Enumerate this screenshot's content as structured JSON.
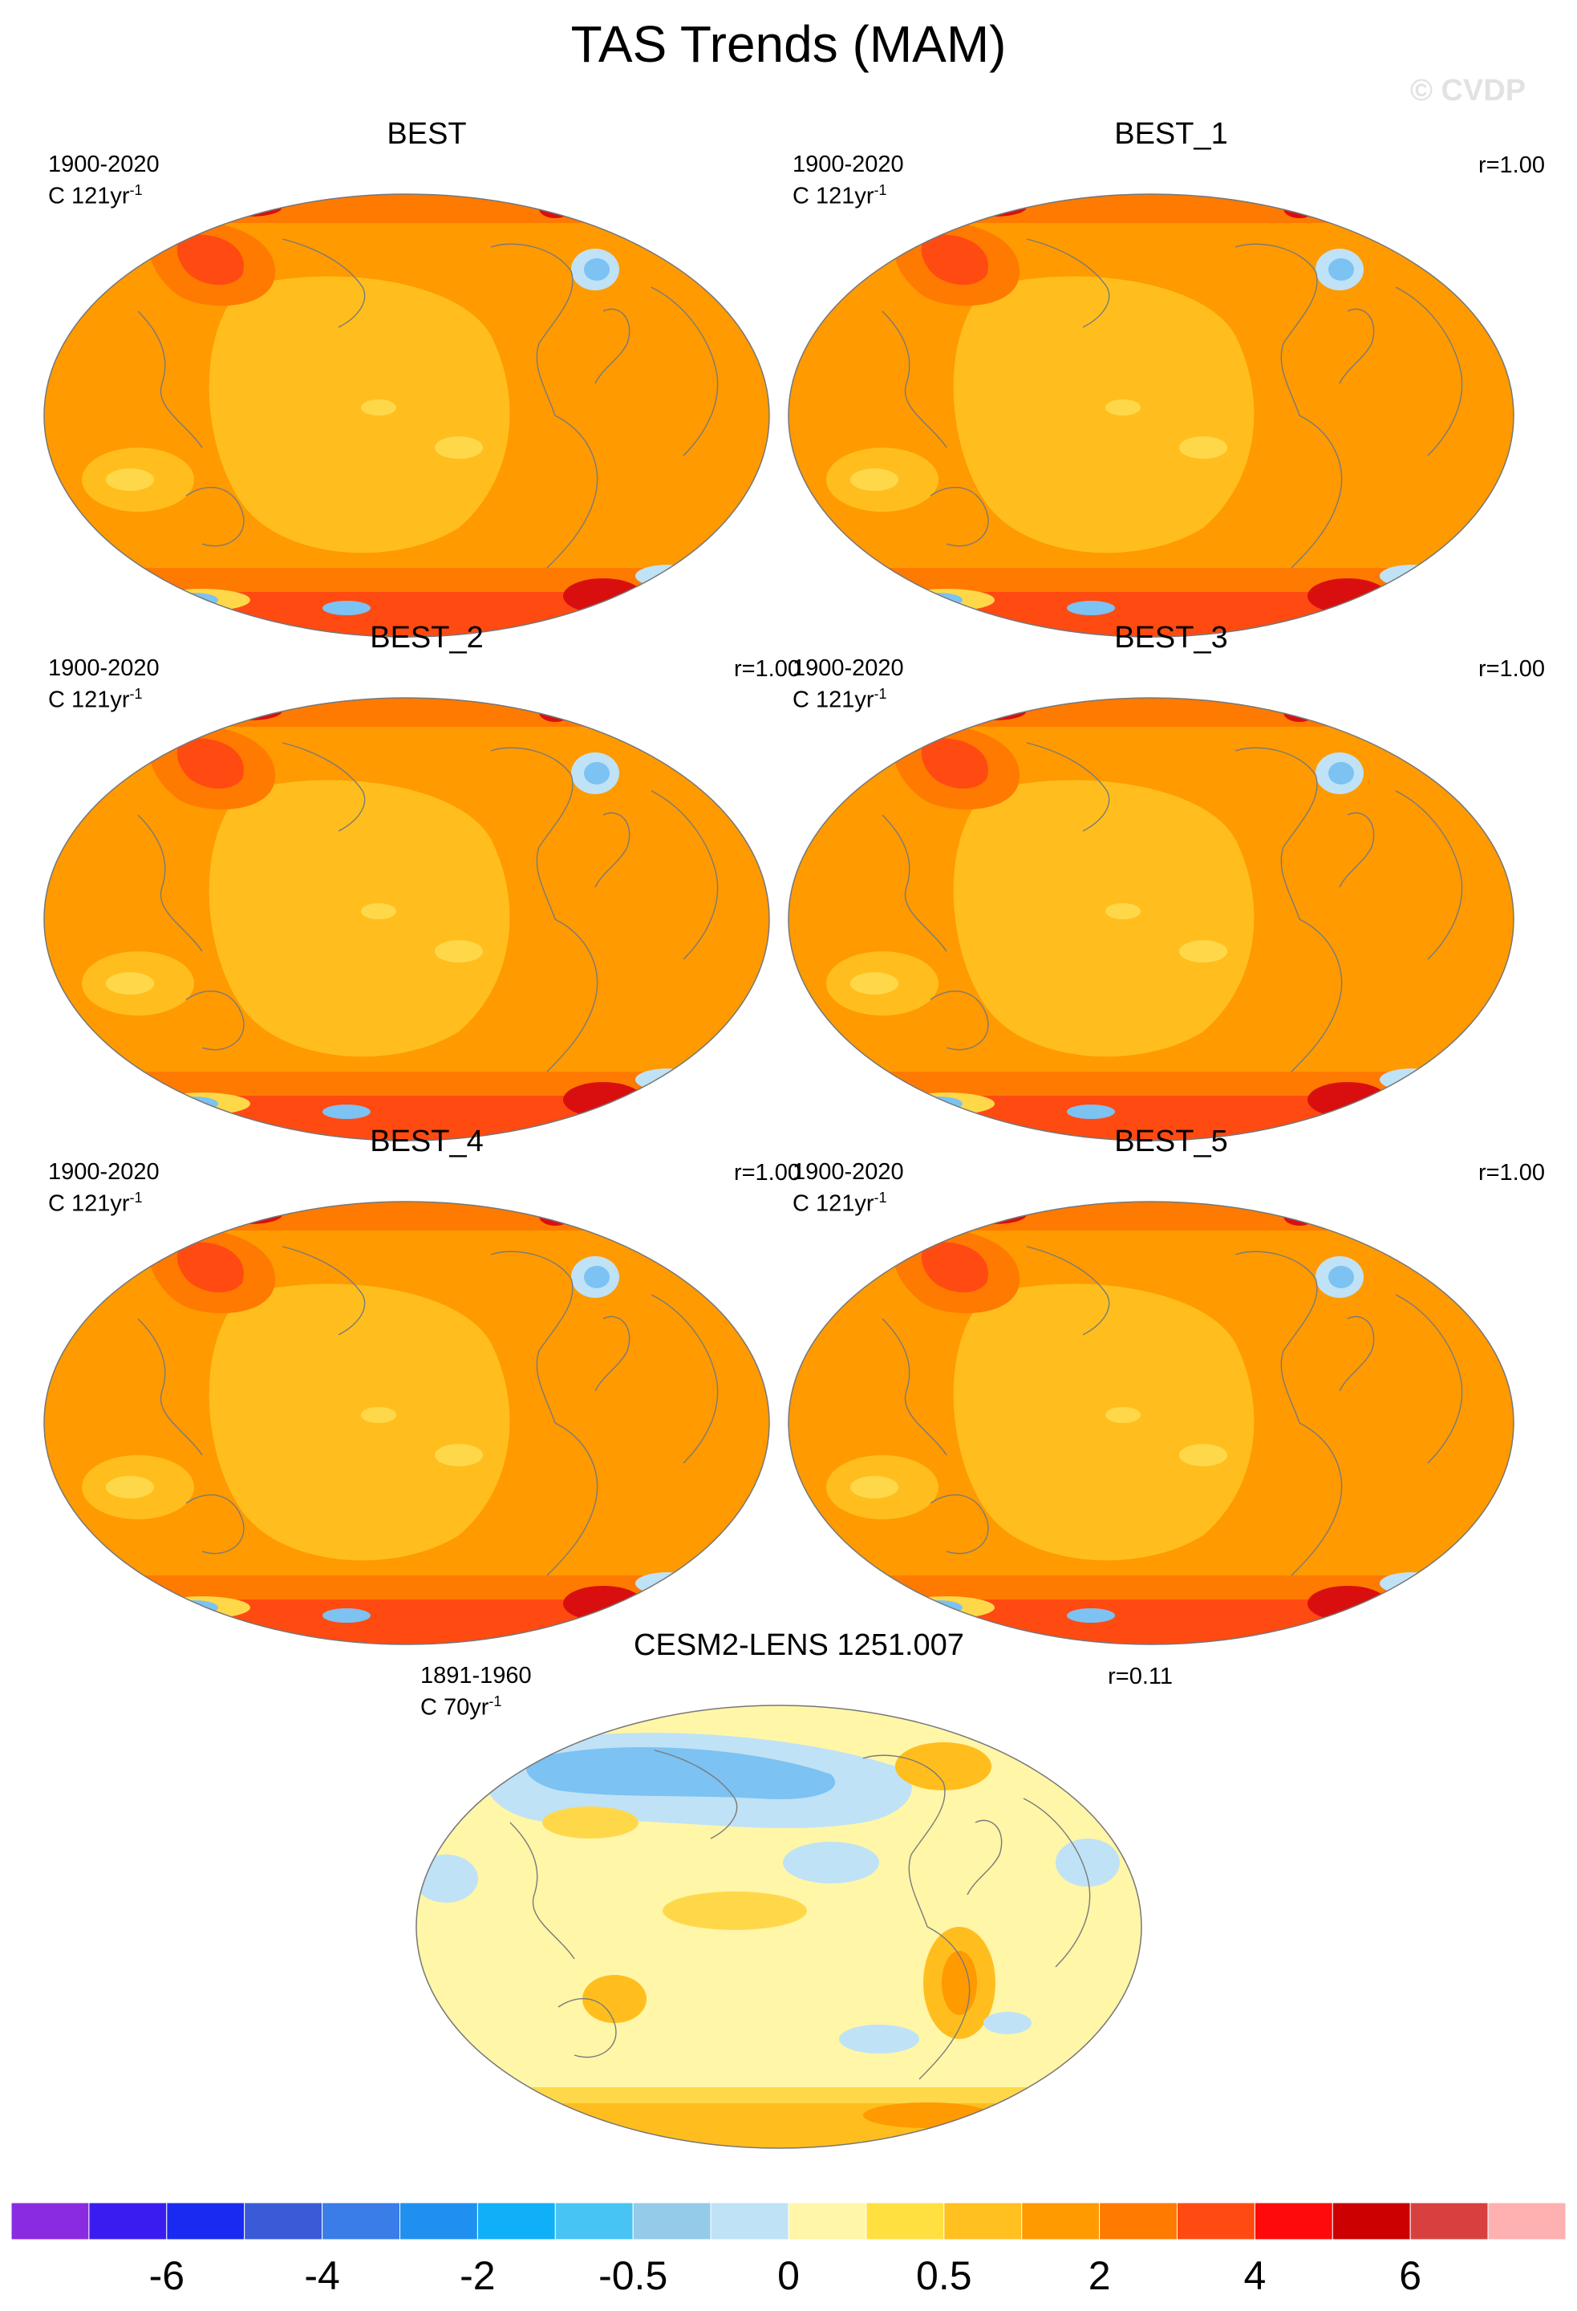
{
  "title": "TAS Trends (MAM)",
  "watermark": "© CVDP",
  "palette": {
    "warm_light": "#ffd84a",
    "warm_mid": "#ffbe1e",
    "warm": "#ff9a00",
    "warm_strong": "#ff7a00",
    "hot": "#ff4a12",
    "hottest": "#d90f0f",
    "cool_light": "#bfe2f6",
    "cool": "#7cc2f2",
    "pale_yellow": "#fff6a8",
    "land_line": "#7a7a7a"
  },
  "panels": [
    {
      "title": "BEST",
      "years": "1900-2020",
      "units_base": "C 121yr",
      "units_sup": "-1",
      "corr": "",
      "style": "warm"
    },
    {
      "title": "BEST_1",
      "years": "1900-2020",
      "units_base": "C 121yr",
      "units_sup": "-1",
      "corr": "r=1.00",
      "style": "warm"
    },
    {
      "title": "BEST_2",
      "years": "1900-2020",
      "units_base": "C 121yr",
      "units_sup": "-1",
      "corr": "r=1.00",
      "style": "warm"
    },
    {
      "title": "BEST_3",
      "years": "1900-2020",
      "units_base": "C 121yr",
      "units_sup": "-1",
      "corr": "r=1.00",
      "style": "warm"
    },
    {
      "title": "BEST_4",
      "years": "1900-2020",
      "units_base": "C 121yr",
      "units_sup": "-1",
      "corr": "r=1.00",
      "style": "warm"
    },
    {
      "title": "BEST_5",
      "years": "1900-2020",
      "units_base": "C 121yr",
      "units_sup": "-1",
      "corr": "r=1.00",
      "style": "warm"
    },
    {
      "title": "CESM2-LENS 1251.007",
      "years": "1891-1960",
      "units_base": "C 70yr",
      "units_sup": "-1",
      "corr": "r=0.11",
      "style": "mixed"
    }
  ],
  "colorbar": {
    "colors": [
      "#8a2be2",
      "#3b1cf0",
      "#1a2af0",
      "#3a5ad8",
      "#3a7ce8",
      "#2090f0",
      "#10b0f8",
      "#48c4f4",
      "#94cbe8",
      "#bfe2f6",
      "#fff6a8",
      "#ffe040",
      "#ffc020",
      "#ff9a00",
      "#ff7a00",
      "#ff4a12",
      "#ff0a0a",
      "#cc0000",
      "#d84040",
      "#ffb0b0"
    ],
    "labels": [
      {
        "text": "-6",
        "boundary": 2
      },
      {
        "text": "-4",
        "boundary": 4
      },
      {
        "text": "-2",
        "boundary": 6
      },
      {
        "text": "-0.5",
        "boundary": 8
      },
      {
        "text": "0",
        "boundary": 10
      },
      {
        "text": "0.5",
        "boundary": 12
      },
      {
        "text": "2",
        "boundary": 14
      },
      {
        "text": "4",
        "boundary": 16
      },
      {
        "text": "6",
        "boundary": 18
      }
    ]
  }
}
